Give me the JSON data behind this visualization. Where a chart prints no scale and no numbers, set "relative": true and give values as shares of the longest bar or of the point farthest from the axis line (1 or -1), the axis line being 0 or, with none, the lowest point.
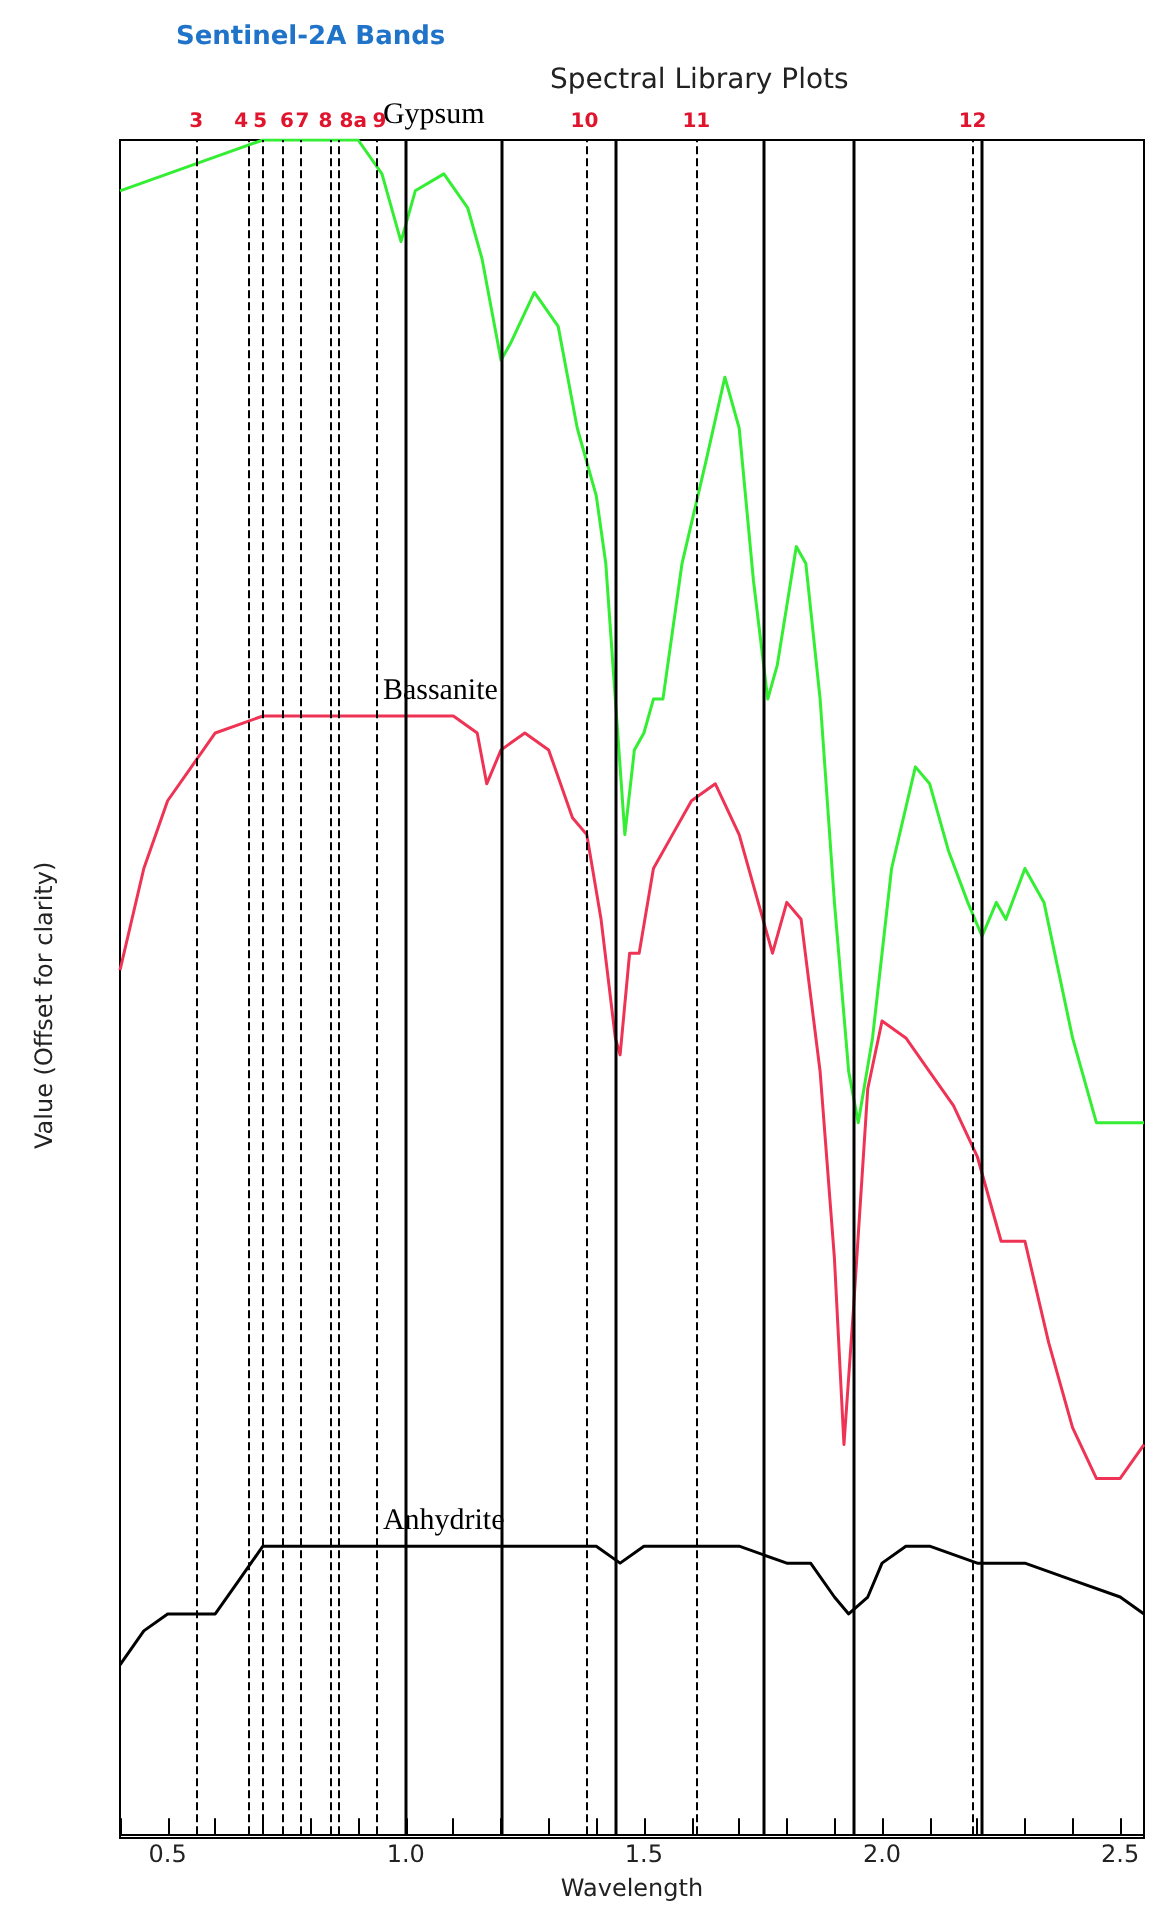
{
  "chart_data": {
    "type": "line",
    "title": "Spectral Library Plots",
    "xlabel": "Wavelength",
    "ylabel": "Value (Offset for clarity)",
    "relative": true,
    "grid": false,
    "legend": false,
    "marker": "none",
    "line_style": "solid",
    "annotations": [
      "Sentinel-2A Bands",
      "3",
      "4",
      "5",
      "6",
      "7",
      "8",
      "8a",
      "9",
      "10",
      "11",
      "12"
    ],
    "xlim": [
      0.4,
      2.55
    ],
    "xticks": [
      {
        "value": 0.4,
        "label": null
      },
      0.5,
      {
        "value": 0.6,
        "label": null
      },
      {
        "value": 0.7,
        "label": null
      },
      {
        "value": 0.8,
        "label": null
      },
      {
        "value": 0.9,
        "label": null
      },
      {
        "value": 1,
        "label": "1.0"
      },
      {
        "value": 1.1,
        "label": null
      },
      {
        "value": 1.2,
        "label": null
      },
      {
        "value": 1.3,
        "label": null
      },
      {
        "value": 1.4,
        "label": null
      },
      1.5,
      {
        "value": 1.6,
        "label": null
      },
      {
        "value": 1.7,
        "label": null
      },
      {
        "value": 1.8,
        "label": null
      },
      {
        "value": 1.9,
        "label": null
      },
      {
        "value": 2,
        "label": "2.0"
      },
      {
        "value": 2.1,
        "label": null
      },
      {
        "value": 2.2,
        "label": null
      },
      {
        "value": 2.3,
        "label": null
      },
      {
        "value": 2.4,
        "label": null
      },
      2.5
    ],
    "series": [
      {
        "name": "Gypsum",
        "color": "#33ee33",
        "x": [
          0.4,
          0.5,
          0.6,
          0.7,
          0.8,
          0.85,
          0.9,
          0.95,
          0.99,
          1.02,
          1.08,
          1.13,
          1.16,
          1.2,
          1.22,
          1.27,
          1.32,
          1.36,
          1.4,
          1.42,
          1.44,
          1.46,
          1.48,
          1.5,
          1.52,
          1.54,
          1.58,
          1.63,
          1.67,
          1.7,
          1.73,
          1.76,
          1.78,
          1.82,
          1.84,
          1.87,
          1.9,
          1.93,
          1.95,
          1.98,
          2.02,
          2.07,
          2.1,
          2.14,
          2.18,
          2.21,
          2.24,
          2.26,
          2.3,
          2.34,
          2.4,
          2.45,
          2.5,
          2.55
        ],
        "values": [
          0.97,
          0.98,
          0.99,
          1.0,
          1.0,
          1.0,
          1.0,
          0.98,
          0.94,
          0.97,
          0.98,
          0.96,
          0.93,
          0.87,
          0.88,
          0.91,
          0.89,
          0.83,
          0.79,
          0.75,
          0.67,
          0.59,
          0.64,
          0.65,
          0.67,
          0.67,
          0.75,
          0.81,
          0.86,
          0.83,
          0.74,
          0.67,
          0.69,
          0.76,
          0.75,
          0.67,
          0.55,
          0.45,
          0.42,
          0.47,
          0.57,
          0.63,
          0.62,
          0.58,
          0.55,
          0.53,
          0.55,
          0.54,
          0.57,
          0.55,
          0.47,
          0.42,
          0.42,
          0.42
        ]
      },
      {
        "name": "Bassanite",
        "color": "#ee3355",
        "x": [
          0.4,
          0.45,
          0.5,
          0.55,
          0.6,
          0.7,
          0.8,
          0.9,
          0.98,
          1.0,
          1.05,
          1.1,
          1.15,
          1.17,
          1.2,
          1.25,
          1.3,
          1.35,
          1.38,
          1.41,
          1.44,
          1.45,
          1.47,
          1.49,
          1.52,
          1.56,
          1.6,
          1.65,
          1.7,
          1.75,
          1.77,
          1.8,
          1.83,
          1.87,
          1.9,
          1.92,
          1.94,
          1.97,
          2.0,
          2.05,
          2.1,
          2.15,
          2.2,
          2.25,
          2.3,
          2.35,
          2.4,
          2.45,
          2.5,
          2.55
        ],
        "values": [
          0.51,
          0.57,
          0.61,
          0.63,
          0.65,
          0.66,
          0.66,
          0.66,
          0.66,
          0.66,
          0.66,
          0.66,
          0.65,
          0.62,
          0.64,
          0.65,
          0.64,
          0.6,
          0.59,
          0.54,
          0.47,
          0.46,
          0.52,
          0.52,
          0.57,
          0.59,
          0.61,
          0.62,
          0.59,
          0.54,
          0.52,
          0.55,
          0.54,
          0.45,
          0.34,
          0.23,
          0.31,
          0.44,
          0.48,
          0.47,
          0.45,
          0.43,
          0.4,
          0.35,
          0.35,
          0.29,
          0.24,
          0.21,
          0.21,
          0.23
        ]
      },
      {
        "name": "Anhydrite",
        "color": "#000000",
        "x": [
          0.4,
          0.45,
          0.5,
          0.55,
          0.6,
          0.65,
          0.7,
          0.75,
          0.8,
          0.85,
          0.9,
          1.0,
          1.2,
          1.4,
          1.45,
          1.5,
          1.6,
          1.7,
          1.8,
          1.85,
          1.9,
          1.93,
          1.97,
          2.0,
          2.05,
          2.1,
          2.2,
          2.3,
          2.4,
          2.5,
          2.55
        ],
        "values": [
          0.1,
          0.12,
          0.13,
          0.13,
          0.13,
          0.15,
          0.17,
          0.17,
          0.17,
          0.17,
          0.17,
          0.17,
          0.17,
          0.17,
          0.16,
          0.17,
          0.17,
          0.17,
          0.16,
          0.16,
          0.14,
          0.13,
          0.14,
          0.16,
          0.17,
          0.17,
          0.16,
          0.16,
          0.15,
          0.14,
          0.13
        ]
      }
    ],
    "ref_lines": [
      {
        "axis": "x",
        "value": 0.56,
        "line_style": "dashed"
      },
      {
        "axis": "x",
        "value": 0.665,
        "line_style": "dashed"
      },
      {
        "axis": "x",
        "value": 0.705,
        "line_style": "dashed"
      },
      {
        "axis": "x",
        "value": 0.74,
        "line_style": "dashed"
      },
      {
        "axis": "x",
        "value": 0.783,
        "line_style": "dashed"
      },
      {
        "axis": "x",
        "value": 0.842,
        "line_style": "dashed"
      },
      {
        "axis": "x",
        "value": 0.865,
        "line_style": "dashed"
      },
      {
        "axis": "x",
        "value": 0.945,
        "line_style": "dashed"
      },
      {
        "axis": "x",
        "value": 1.375,
        "line_style": "dashed"
      },
      {
        "axis": "x",
        "value": 1.61,
        "line_style": "dashed"
      },
      {
        "axis": "x",
        "value": 2.19,
        "line_style": "dashed"
      },
      {
        "axis": "x",
        "value": 1.0,
        "line_style": "solid"
      },
      {
        "axis": "x",
        "value": 1.2,
        "line_style": "solid"
      },
      {
        "axis": "x",
        "value": 1.44,
        "line_style": "solid"
      },
      {
        "axis": "x",
        "value": 1.75,
        "line_style": "solid"
      },
      {
        "axis": "x",
        "value": 1.94,
        "line_style": "solid"
      },
      {
        "axis": "x",
        "value": 2.21,
        "line_style": "solid"
      }
    ]
  }
}
